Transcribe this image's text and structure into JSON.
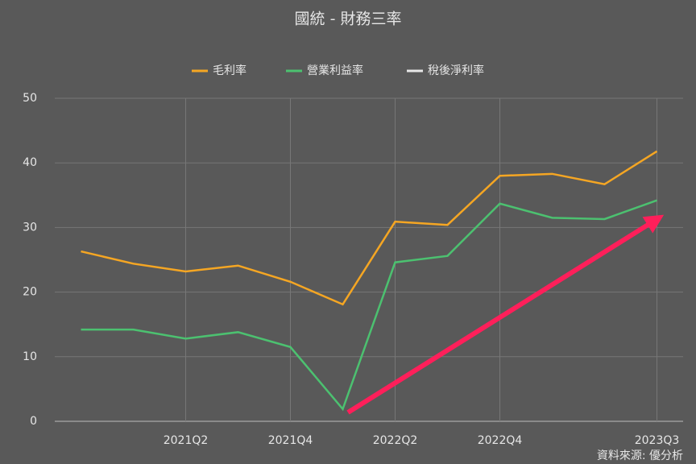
{
  "chart_data": {
    "type": "line",
    "title": "國統 - 財務三率",
    "categories": [
      null,
      null,
      "2021Q2",
      null,
      "2021Q4",
      null,
      "2022Q2",
      null,
      "2022Q4",
      null,
      null,
      "2023Q3"
    ],
    "series": [
      {
        "name": "毛利率",
        "color": "#f5a623",
        "values": [
          26.3,
          24.4,
          23.2,
          24.1,
          21.6,
          18.1,
          30.9,
          30.4,
          38.0,
          38.3,
          36.7,
          41.8
        ]
      },
      {
        "name": "營業利益率",
        "color": "#4cc170",
        "values": [
          14.2,
          14.2,
          12.8,
          13.8,
          11.5,
          1.9,
          24.6,
          25.6,
          33.7,
          31.5,
          31.3,
          34.2
        ]
      },
      {
        "name": "稅後淨利率",
        "color": "#e8e8e8",
        "values": [
          null,
          null,
          null,
          null,
          null,
          null,
          null,
          null,
          null,
          null,
          null,
          null
        ]
      }
    ],
    "ylim": [
      0,
      50
    ],
    "yticks": [
      0,
      10,
      20,
      30,
      40,
      50
    ],
    "grid": true,
    "legend": "top",
    "source": "資料來源: 優分析"
  }
}
